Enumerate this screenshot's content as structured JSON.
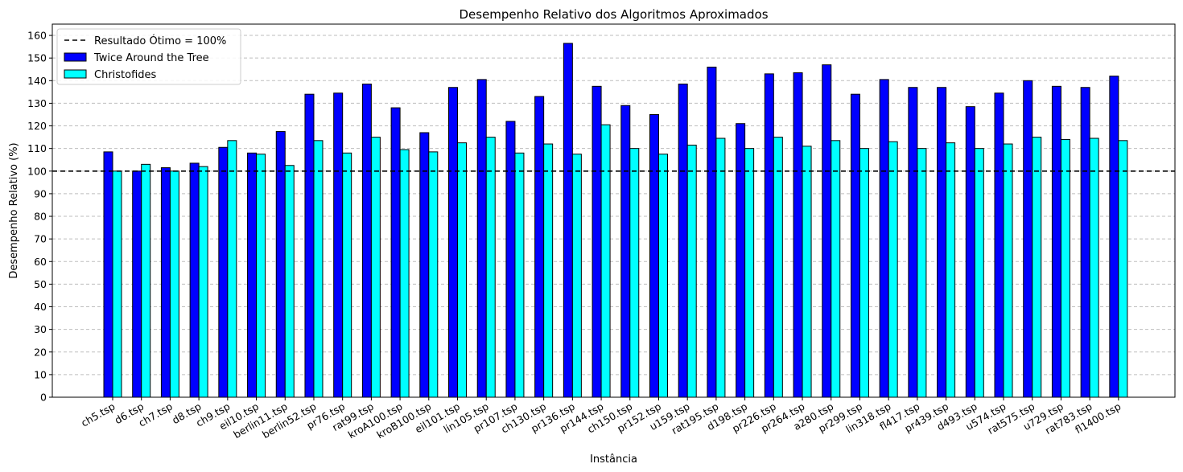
{
  "chart_data": {
    "type": "bar",
    "title": "Desempenho Relativo dos Algoritmos Aproximados",
    "xlabel": "Instância",
    "ylabel": "Desempenho Relativo (%)",
    "ylim": [
      0,
      165
    ],
    "yticks": [
      0,
      10,
      20,
      30,
      40,
      50,
      60,
      70,
      80,
      90,
      100,
      110,
      120,
      130,
      140,
      150,
      160
    ],
    "grid": "y-dashed",
    "legend_position": "top-left",
    "reference_line": {
      "label": "Resultado Ótimo = 100%",
      "value": 100,
      "color": "#000000"
    },
    "categories": [
      "ch5.tsp",
      "d6.tsp",
      "ch7.tsp",
      "d8.tsp",
      "ch9.tsp",
      "eil10.tsp",
      "berlin11.tsp",
      "berlin52.tsp",
      "pr76.tsp",
      "rat99.tsp",
      "kroA100.tsp",
      "kroB100.tsp",
      "eil101.tsp",
      "lin105.tsp",
      "pr107.tsp",
      "ch130.tsp",
      "pr136.tsp",
      "pr144.tsp",
      "ch150.tsp",
      "pr152.tsp",
      "u159.tsp",
      "rat195.tsp",
      "d198.tsp",
      "pr226.tsp",
      "pr264.tsp",
      "a280.tsp",
      "pr299.tsp",
      "lin318.tsp",
      "fl417.tsp",
      "pr439.tsp",
      "d493.tsp",
      "u574.tsp",
      "rat575.tsp",
      "u729.tsp",
      "rat783.tsp",
      "fl1400.tsp"
    ],
    "series": [
      {
        "name": "Twice Around the Tree",
        "color": "#0000ff",
        "values": [
          108.5,
          100,
          101.5,
          103.5,
          110.5,
          108,
          117.5,
          134,
          134.5,
          138.5,
          128,
          117,
          137,
          140.5,
          122,
          133,
          156.5,
          137.5,
          129,
          125,
          138.5,
          146,
          121,
          143,
          143.5,
          147,
          134,
          140.5,
          137,
          137,
          128.5,
          134.5,
          140,
          137.5,
          137,
          142
        ]
      },
      {
        "name": "Christofides",
        "color": "#00ffff",
        "values": [
          100,
          103,
          100,
          102,
          113.5,
          107.5,
          102.5,
          113.5,
          108,
          115,
          109.5,
          108.5,
          112.5,
          115,
          108,
          112,
          107.5,
          120.5,
          110,
          107.5,
          111.5,
          114.5,
          110,
          115,
          111,
          113.5,
          110,
          113,
          110,
          112.5,
          110,
          112,
          115,
          114,
          114.5,
          113.5
        ]
      }
    ]
  }
}
